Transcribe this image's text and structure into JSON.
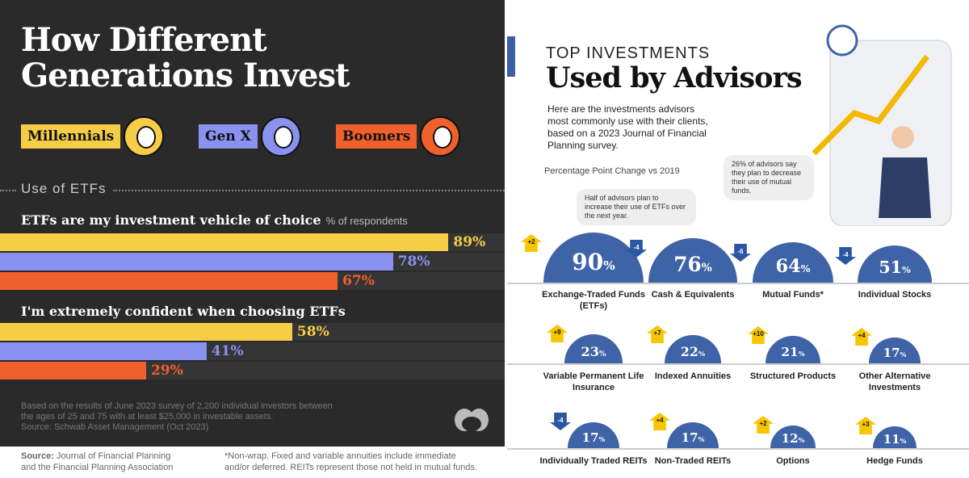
{
  "left": {
    "title_line1": "How Different",
    "title_line2": "Generations Invest",
    "legend": [
      {
        "label": "Millennials",
        "color": "#f6cd46"
      },
      {
        "label": "Gen X",
        "color": "#8a92f0"
      },
      {
        "label": "Boomers",
        "color": "#f0602c"
      }
    ],
    "section": "Use of ETFs",
    "q1": "ETFs are my investment vehicle of choice",
    "q1_unit": "% of respondents",
    "q2": "I'm extremely confident when choosing ETFs",
    "footnote1": "Based on the results of June 2023 survey of 2,200 individual investors between",
    "footnote2": "the ages of 25 and 75 with at least $25,000 in investable assets.",
    "footnote3": "Source: Schwab Asset Management (Oct 2023)"
  },
  "bottom": {
    "source_bold": "Source:",
    "source1": "Journal of Financial Planning",
    "source2": "and the Financial Planning Association",
    "note1": "*Non-wrap. Fixed and variable annuities include immediate",
    "note2": "and/or deferred. REITs represent those not held in mutual funds."
  },
  "right": {
    "title1": "TOP INVESTMENTS",
    "title2": "Used by Advisors",
    "desc": "Here are the investments advisors most commonly use with their clients, based on a 2023 Journal of Financial Planning survey.",
    "ppc": "Percentage Point Change vs 2019",
    "bubble1": "Half of advisors plan to increase their use of ETFs over the next year.",
    "bubble2": "26% of advisors say they plan to decrease their use of mutual funds."
  },
  "chart_data": [
    {
      "type": "bar",
      "title": "ETFs are my investment vehicle of choice",
      "ylabel": "% of respondents",
      "categories": [
        "Millennials",
        "Gen X",
        "Boomers"
      ],
      "values": [
        89,
        78,
        67
      ],
      "labels": [
        "89%",
        "78%",
        "67%"
      ],
      "xlim": [
        0,
        100
      ]
    },
    {
      "type": "bar",
      "title": "I'm extremely confident when choosing ETFs",
      "categories": [
        "Millennials",
        "Gen X",
        "Boomers"
      ],
      "values": [
        58,
        41,
        29
      ],
      "labels": [
        "58%",
        "41%",
        "29%"
      ],
      "xlim": [
        0,
        100
      ]
    },
    {
      "type": "bar",
      "title": "Top Investments Used by Advisors",
      "items": [
        {
          "name": "Exchange-Traded Funds (ETFs)",
          "value": 90,
          "change": "+2",
          "dir": "up"
        },
        {
          "name": "Cash & Equivalents",
          "value": 76,
          "change": "-4",
          "dir": "down"
        },
        {
          "name": "Mutual Funds*",
          "value": 64,
          "change": "-6",
          "dir": "down"
        },
        {
          "name": "Individual Stocks",
          "value": 51,
          "change": "-4",
          "dir": "down"
        },
        {
          "name": "Variable Permanent Life Insurance",
          "value": 23,
          "change": "+9",
          "dir": "up"
        },
        {
          "name": "Indexed Annuities",
          "value": 22,
          "change": "+7",
          "dir": "up"
        },
        {
          "name": "Structured Products",
          "value": 21,
          "change": "+10",
          "dir": "up"
        },
        {
          "name": "Other Alternative Investments",
          "value": 17,
          "change": "+4",
          "dir": "up"
        },
        {
          "name": "Individually Traded REITs",
          "value": 17,
          "change": "-4",
          "dir": "down"
        },
        {
          "name": "Non-Traded REITs",
          "value": 17,
          "change": "+4",
          "dir": "up"
        },
        {
          "name": "Options",
          "value": 12,
          "change": "+2",
          "dir": "up"
        },
        {
          "name": "Hedge Funds",
          "value": 11,
          "change": "+3",
          "dir": "up"
        }
      ],
      "unit": "%",
      "change_unit": "pp"
    }
  ]
}
